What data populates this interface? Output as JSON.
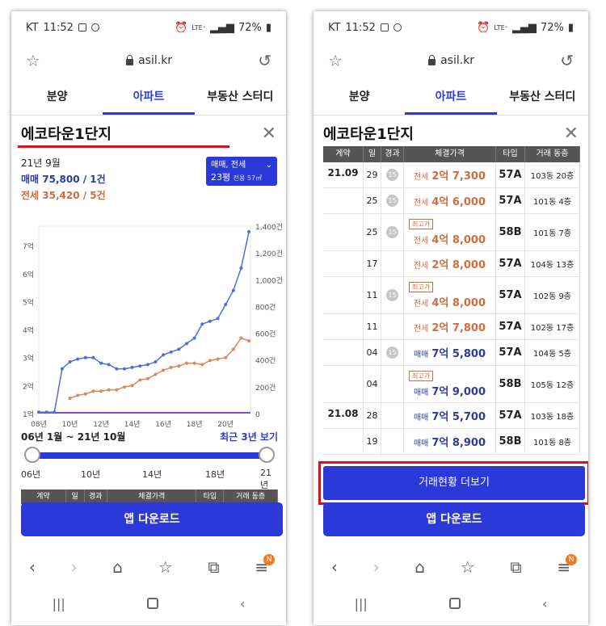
{
  "status": {
    "carrier": "KT",
    "p1_time": "11:52",
    "p2_time": "11:52",
    "battery": "72%",
    "network": "LTE⁺"
  },
  "browser": {
    "url": "asil.kr"
  },
  "tabs": [
    "분양",
    "아파트",
    "부동산 스터디"
  ],
  "apt_name": "에코타운1단지",
  "summary": {
    "month": "21년 9월",
    "sale": "매매 75,800 / 1건",
    "rent": "전세 35,420 / 5건"
  },
  "filter": {
    "type": "매매, 전세",
    "size": "23평",
    "size_detail": "전용 57㎡"
  },
  "chart_data": {
    "type": "line",
    "x_ticks": [
      "08년",
      "10년",
      "12년",
      "14년",
      "16년",
      "18년",
      "20년"
    ],
    "y_left_ticks": [
      "1억",
      "2억",
      "3억",
      "4억",
      "5억",
      "6억",
      "7억"
    ],
    "y_right_ticks": [
      "0",
      "200건",
      "400건",
      "600건",
      "800건",
      "1,000건",
      "1,200건",
      "1,400건"
    ],
    "x": [
      2008,
      2008.5,
      2009,
      2009.5,
      2010,
      2010.5,
      2011,
      2011.5,
      2012,
      2012.5,
      2013,
      2013.5,
      2014,
      2014.5,
      2015,
      2015.5,
      2016,
      2016.5,
      2017,
      2017.5,
      2018,
      2018.5,
      2019,
      2019.5,
      2020,
      2020.5,
      2021,
      2021.5
    ],
    "series": [
      {
        "name": "매매",
        "color": "#4f6fd6",
        "values": [
          1.05,
          1.05,
          1.05,
          2.6,
          2.85,
          2.95,
          3.0,
          3.0,
          2.8,
          2.75,
          2.6,
          2.6,
          2.65,
          2.7,
          2.75,
          2.85,
          3.1,
          3.2,
          3.3,
          3.5,
          3.7,
          4.2,
          4.3,
          4.4,
          4.9,
          5.4,
          6.2,
          7.5
        ]
      },
      {
        "name": "전세",
        "color": "#e0875a",
        "values": [
          null,
          null,
          null,
          null,
          1.55,
          1.65,
          1.7,
          1.8,
          1.8,
          1.85,
          1.85,
          1.95,
          2.0,
          2.2,
          2.25,
          2.4,
          2.55,
          2.65,
          2.7,
          2.8,
          2.8,
          2.75,
          2.9,
          2.95,
          3.0,
          3.3,
          3.7,
          3.6
        ]
      }
    ],
    "ylim": [
      1,
      7.7
    ]
  },
  "range": {
    "label": "06년 1월 ~ 21년 10월",
    "link": "최근 3년 보기",
    "ticks": [
      "06년",
      "10년",
      "14년",
      "18년",
      "21년"
    ]
  },
  "table_header": [
    "계약",
    "일",
    "경과",
    "체결가격",
    "타입",
    "거래 동층"
  ],
  "table_rows": [
    {
      "month": "21.09",
      "day": "29",
      "badge": "15",
      "max": "",
      "kind": "전세",
      "price": "2억 7,300",
      "type": "57A",
      "loc": "103동 20층",
      "cls": "rent",
      "h": 32
    },
    {
      "month": "",
      "day": "25",
      "badge": "15",
      "max": "",
      "kind": "전세",
      "price": "4억 6,000",
      "type": "57A",
      "loc": "101동  4층",
      "cls": "rent",
      "h": 32
    },
    {
      "month": "",
      "day": "25",
      "badge": "15",
      "max": "최고가",
      "kind": "전세",
      "price": "4억 8,000",
      "type": "58B",
      "loc": "101동  7층",
      "cls": "rent",
      "h": 46
    },
    {
      "month": "",
      "day": "17",
      "badge": "",
      "max": "",
      "kind": "전세",
      "price": "2억 8,000",
      "type": "57A",
      "loc": "104동 13층",
      "cls": "rent",
      "h": 32
    },
    {
      "month": "",
      "day": "11",
      "badge": "15",
      "max": "최고가",
      "kind": "전세",
      "price": "4억 8,000",
      "type": "57A",
      "loc": "102동  9층",
      "cls": "rent",
      "h": 46
    },
    {
      "month": "",
      "day": "11",
      "badge": "",
      "max": "",
      "kind": "전세",
      "price": "2억 7,800",
      "type": "57A",
      "loc": "102동 17층",
      "cls": "rent",
      "h": 32
    },
    {
      "month": "",
      "day": "04",
      "badge": "15",
      "max": "",
      "kind": "매매",
      "price": "7억 5,800",
      "type": "57A",
      "loc": "104동  5층",
      "cls": "sale",
      "h": 32
    },
    {
      "month": "",
      "day": "04",
      "badge": "",
      "max": "최고가",
      "kind": "매매",
      "price": "7억 9,000",
      "type": "58B",
      "loc": "105동 12층",
      "cls": "sale",
      "h": 46
    },
    {
      "month": "21.08",
      "day": "28",
      "badge": "",
      "max": "",
      "kind": "매매",
      "price": "7억 5,700",
      "type": "57A",
      "loc": "103동 18층",
      "cls": "sale",
      "h": 32
    },
    {
      "month": "",
      "day": "19",
      "badge": "",
      "max": "",
      "kind": "매매",
      "price": "7억 8,900",
      "type": "58B",
      "loc": "101동  8층",
      "cls": "sale",
      "h": 32
    }
  ],
  "more_button": "거래현황 더보기",
  "app_button": "앱 다운로드",
  "nav_badge": "N"
}
